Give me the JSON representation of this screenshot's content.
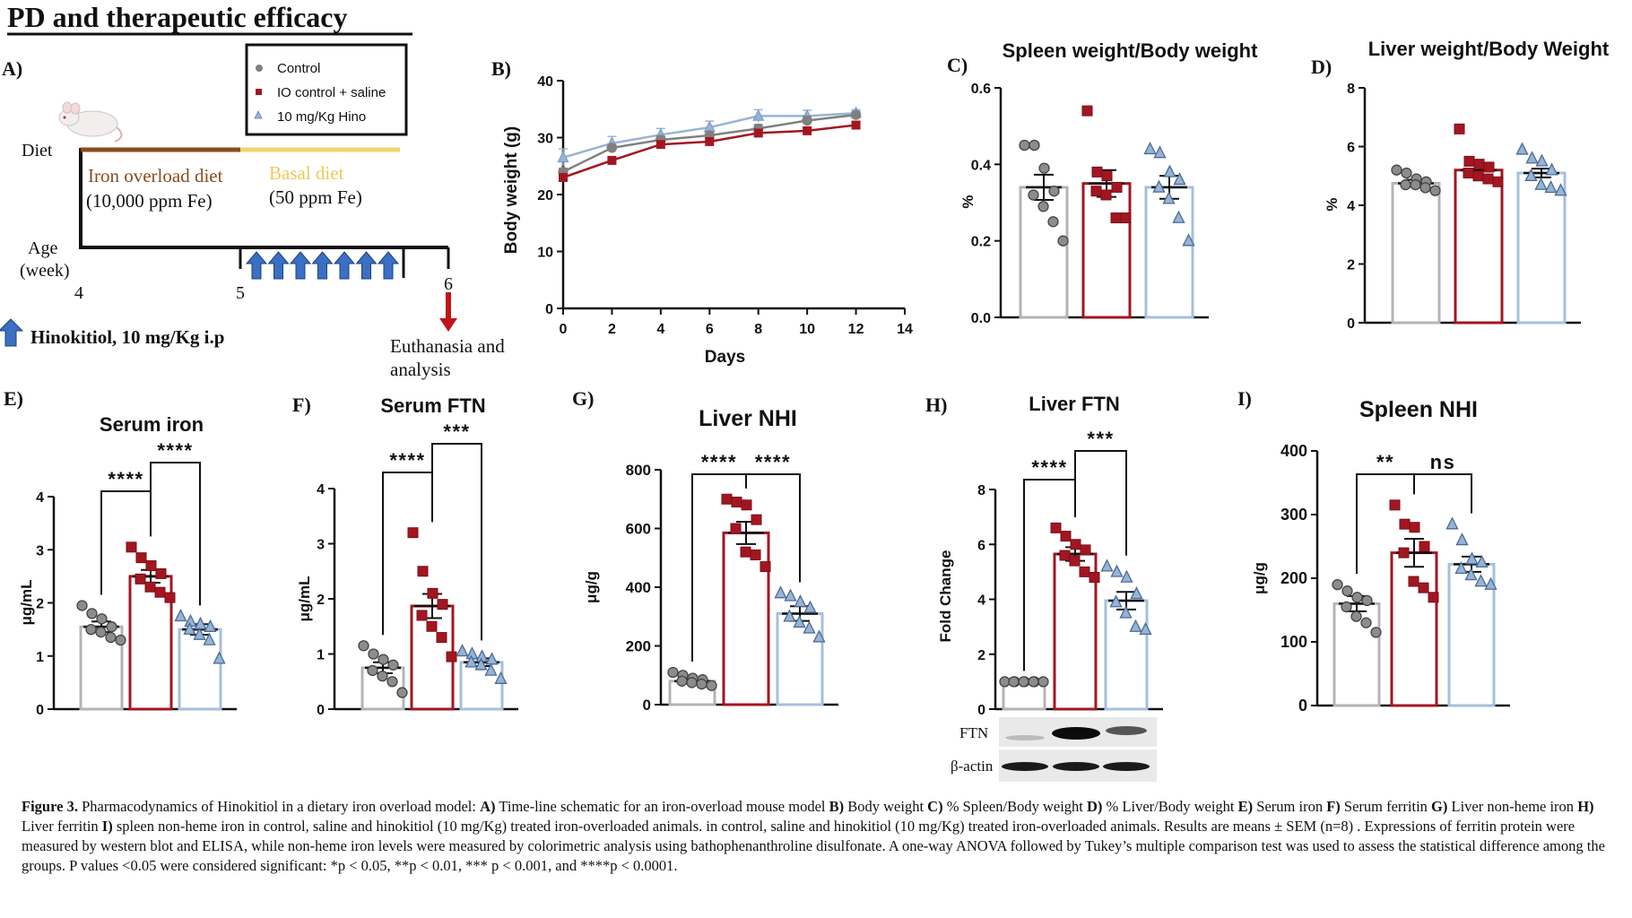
{
  "page_title": "PD and therapeutic efficacy",
  "panel_a": {
    "letter": "A)",
    "legend": [
      {
        "label": "Control",
        "color": "#808080",
        "marker": "circle"
      },
      {
        "label": "IO control + saline",
        "color": "#a31621",
        "marker": "square"
      },
      {
        "label": "10 mg/Kg Hino",
        "color": "#98b4d4",
        "marker": "triangle"
      }
    ],
    "diet_label": "Diet",
    "iron_diet_name": "Iron overload diet",
    "iron_diet_dose": "(10,000 ppm Fe)",
    "basal_diet_name": "Basal diet",
    "basal_diet_dose": "(50 ppm Fe)",
    "age_label": "Age",
    "week_label": "(week)",
    "ticks": [
      "4",
      "5",
      "6"
    ],
    "dosing_legend": "Hinokitiol, 10 mg/Kg i.p",
    "euthanasia_line1": "Euthanasia and",
    "euthanasia_line2": "analysis",
    "iron_diet_color": "#8b4a1e",
    "basal_diet_color": "#f5d36b",
    "arrow_color": "#3a6fc4",
    "euthanasia_arrow_color": "#c0141a",
    "injection_count": 7
  },
  "panel_b": {
    "letter": "B)"
  },
  "panel_c": {
    "letter": "C)"
  },
  "panel_d": {
    "letter": "D)"
  },
  "panel_e": {
    "letter": "E)"
  },
  "panel_f": {
    "letter": "F)"
  },
  "panel_g": {
    "letter": "G)"
  },
  "panel_h": {
    "letter": "H)",
    "blot_labels": [
      "FTN",
      "β-actin"
    ]
  },
  "panel_i": {
    "letter": "I)"
  },
  "chart_data": [
    {
      "panel": "B",
      "type": "line",
      "xlabel": "Days",
      "ylabel": "Body weight (g)",
      "xlim": [
        0,
        14
      ],
      "ylim": [
        0,
        40
      ],
      "xticks": [
        "0",
        "2",
        "4",
        "6",
        "8",
        "10",
        "12",
        "14"
      ],
      "yticks": [
        "0",
        "10",
        "20",
        "30",
        "40"
      ],
      "x": [
        0,
        2,
        4,
        6,
        8,
        10,
        12
      ],
      "series": [
        {
          "name": "Control",
          "color": "#808080",
          "marker": "circle",
          "values": [
            24,
            28.2,
            29.6,
            30.4,
            31.6,
            33,
            34
          ]
        },
        {
          "name": "IO control + saline",
          "color": "#a31621",
          "marker": "square",
          "values": [
            23,
            26,
            28.8,
            29.3,
            30.8,
            31.2,
            32.2
          ]
        },
        {
          "name": "10 mg/Kg Hino",
          "color": "#98b4d4",
          "marker": "triangle",
          "values": [
            26.5,
            29,
            30.5,
            31.8,
            33.8,
            33.8,
            34.3
          ]
        }
      ],
      "errors": [
        [
          0.6,
          0.5,
          0.6,
          0.6,
          0.7,
          0.7,
          0.6
        ],
        [
          0.5,
          0.5,
          0.6,
          0.5,
          0.5,
          0.5,
          0.5
        ],
        [
          1.5,
          1.2,
          1.1,
          1.1,
          1.1,
          1,
          0.6
        ]
      ]
    },
    {
      "panel": "C",
      "type": "bar",
      "title": "Spleen weight/Body weight",
      "ylabel": "%",
      "ylim": [
        0,
        0.6
      ],
      "yticks": [
        "0.0",
        "0.2",
        "0.4",
        "0.6"
      ],
      "groups": [
        {
          "name": "Control",
          "mean": 0.34,
          "sem": 0.033,
          "points": [
            0.45,
            0.45,
            0.39,
            0.33,
            0.32,
            0.29,
            0.25,
            0.2
          ]
        },
        {
          "name": "IO control + saline",
          "mean": 0.35,
          "sem": 0.035,
          "points": [
            0.54,
            0.38,
            0.37,
            0.34,
            0.33,
            0.32,
            0.26,
            0.26
          ]
        },
        {
          "name": "10 mg/Kg Hino",
          "mean": 0.34,
          "sem": 0.03,
          "points": [
            0.44,
            0.43,
            0.38,
            0.36,
            0.34,
            0.31,
            0.26,
            0.2
          ]
        }
      ]
    },
    {
      "panel": "D",
      "type": "bar",
      "title": "Liver weight/Body Weight",
      "ylabel": "%",
      "ylim": [
        0,
        8
      ],
      "yticks": [
        "0",
        "2",
        "4",
        "6",
        "8"
      ],
      "groups": [
        {
          "name": "Control",
          "mean": 4.75,
          "sem": 0.12,
          "points": [
            5.2,
            5.1,
            4.9,
            4.8,
            4.7,
            4.7,
            4.6,
            4.5
          ]
        },
        {
          "name": "IO control + saline",
          "mean": 5.2,
          "sem": 0.2,
          "points": [
            6.6,
            5.5,
            5.4,
            5.3,
            5.1,
            5.0,
            4.9,
            4.8
          ]
        },
        {
          "name": "10 mg/Kg Hino",
          "mean": 5.1,
          "sem": 0.15,
          "points": [
            5.9,
            5.6,
            5.5,
            5.2,
            5.0,
            4.7,
            4.6,
            4.5
          ]
        }
      ]
    },
    {
      "panel": "E",
      "type": "bar",
      "title": "Serum iron",
      "ylabel": "μg/mL",
      "ylim": [
        0,
        4
      ],
      "yticks": [
        "0",
        "1",
        "2",
        "3",
        "4"
      ],
      "groups": [
        {
          "name": "Control",
          "mean": 1.55,
          "sem": 0.1,
          "points": [
            1.95,
            1.8,
            1.7,
            1.55,
            1.5,
            1.45,
            1.35,
            1.3
          ]
        },
        {
          "name": "IO control + saline",
          "mean": 2.5,
          "sem": 0.12,
          "points": [
            3.05,
            2.85,
            2.7,
            2.55,
            2.45,
            2.3,
            2.2,
            2.1
          ]
        },
        {
          "name": "10 mg/Kg Hino",
          "mean": 1.5,
          "sem": 0.1,
          "points": [
            1.75,
            1.65,
            1.6,
            1.55,
            1.5,
            1.4,
            1.3,
            0.95
          ]
        }
      ],
      "comparisons": [
        {
          "from": 0,
          "to": 1,
          "label": "****"
        },
        {
          "from": 1,
          "to": 2,
          "label": "****"
        }
      ]
    },
    {
      "panel": "F",
      "type": "bar",
      "title": "Serum FTN",
      "ylabel": "μg/mL",
      "ylim": [
        0,
        4
      ],
      "yticks": [
        "0",
        "1",
        "2",
        "3",
        "4"
      ],
      "groups": [
        {
          "name": "Control",
          "mean": 0.75,
          "sem": 0.1,
          "points": [
            1.15,
            1.0,
            0.9,
            0.8,
            0.7,
            0.6,
            0.5,
            0.3
          ]
        },
        {
          "name": "IO control + saline",
          "mean": 1.87,
          "sem": 0.22,
          "points": [
            3.2,
            2.5,
            2.1,
            1.9,
            1.7,
            1.5,
            1.3,
            0.95
          ]
        },
        {
          "name": "10 mg/Kg Hino",
          "mean": 0.85,
          "sem": 0.07,
          "points": [
            1.05,
            1.0,
            0.95,
            0.9,
            0.85,
            0.8,
            0.7,
            0.55
          ]
        }
      ],
      "comparisons": [
        {
          "from": 0,
          "to": 1,
          "label": "****"
        },
        {
          "from": 1,
          "to": 2,
          "label": "***"
        }
      ]
    },
    {
      "panel": "G",
      "type": "bar",
      "title": "Liver NHI",
      "ylabel": "μg/g",
      "ylim": [
        0,
        800
      ],
      "yticks": [
        "0",
        "200",
        "400",
        "600",
        "800"
      ],
      "groups": [
        {
          "name": "Control",
          "mean": 80,
          "sem": 8,
          "points": [
            110,
            100,
            90,
            85,
            80,
            75,
            70,
            65
          ]
        },
        {
          "name": "IO control + saline",
          "mean": 585,
          "sem": 38,
          "points": [
            700,
            690,
            680,
            630,
            600,
            520,
            510,
            470
          ]
        },
        {
          "name": "10 mg/Kg Hino",
          "mean": 310,
          "sem": 25,
          "points": [
            380,
            370,
            350,
            330,
            300,
            280,
            260,
            230
          ]
        }
      ],
      "comparisons": [
        {
          "from": 0,
          "to": 1,
          "label": "****"
        },
        {
          "from": 1,
          "to": 2,
          "label": "****"
        }
      ]
    },
    {
      "panel": "H",
      "type": "bar",
      "title": "Liver FTN",
      "ylabel": "Fold Change",
      "ylim": [
        0,
        8
      ],
      "yticks": [
        "0",
        "2",
        "4",
        "6",
        "8"
      ],
      "groups": [
        {
          "name": "Control",
          "mean": 1.0,
          "sem": 0.02,
          "points": [
            1,
            1,
            1,
            1,
            1,
            1,
            1,
            1
          ]
        },
        {
          "name": "IO control + saline",
          "mean": 5.65,
          "sem": 0.25,
          "points": [
            6.6,
            6.3,
            6.0,
            5.8,
            5.6,
            5.4,
            5.0,
            4.8
          ]
        },
        {
          "name": "10 mg/Kg Hino",
          "mean": 3.95,
          "sem": 0.32,
          "points": [
            5.2,
            5.0,
            4.8,
            4.2,
            3.9,
            3.5,
            3.0,
            2.9
          ]
        }
      ],
      "comparisons": [
        {
          "from": 0,
          "to": 1,
          "label": "****"
        },
        {
          "from": 1,
          "to": 2,
          "label": "***"
        }
      ]
    },
    {
      "panel": "I",
      "type": "bar",
      "title": "Spleen NHI",
      "ylabel": "μg/g",
      "ylim": [
        0,
        400
      ],
      "yticks": [
        "0",
        "100",
        "200",
        "300",
        "400"
      ],
      "groups": [
        {
          "name": "Control",
          "mean": 160,
          "sem": 12,
          "points": [
            190,
            180,
            170,
            165,
            155,
            140,
            130,
            115
          ]
        },
        {
          "name": "IO control + saline",
          "mean": 240,
          "sem": 22,
          "points": [
            315,
            285,
            280,
            250,
            240,
            195,
            185,
            170
          ]
        },
        {
          "name": "10 mg/Kg Hino",
          "mean": 222,
          "sem": 12,
          "points": [
            285,
            260,
            230,
            225,
            215,
            205,
            195,
            190
          ]
        }
      ],
      "comparisons": [
        {
          "from": 0,
          "to": 1,
          "label": "**"
        },
        {
          "from": 1,
          "to": 2,
          "label": "ns"
        }
      ]
    }
  ],
  "caption": {
    "fig_label": "Figure 3.",
    "parts": [
      {
        "b": false,
        "t": " Pharmacodynamics of Hinokitiol in a dietary iron overload model: "
      },
      {
        "b": true,
        "t": "A)"
      },
      {
        "b": false,
        "t": " Time-line schematic for an iron-overload mouse model "
      },
      {
        "b": true,
        "t": "B)"
      },
      {
        "b": false,
        "t": " Body weight "
      },
      {
        "b": true,
        "t": "C)"
      },
      {
        "b": false,
        "t": " % Spleen/Body weight "
      },
      {
        "b": true,
        "t": "D)"
      },
      {
        "b": false,
        "t": " % Liver/Body weight "
      },
      {
        "b": true,
        "t": "E)"
      },
      {
        "b": false,
        "t": " Serum iron "
      },
      {
        "b": true,
        "t": "F)"
      },
      {
        "b": false,
        "t": " Serum ferritin "
      },
      {
        "b": true,
        "t": "G)"
      },
      {
        "b": false,
        "t": " Liver non-heme iron "
      },
      {
        "b": true,
        "t": "H)"
      },
      {
        "b": false,
        "t": " Liver ferritin "
      },
      {
        "b": true,
        "t": "I)"
      },
      {
        "b": false,
        "t": " spleen non-heme iron in control, saline and hinokitiol (10 mg/Kg) treated iron-overloaded animals. in control, saline and hinokitiol (10 mg/Kg) treated iron-overloaded animals. Results are means  ± SEM (n=8) . Expressions of ferritin protein were measured by western blot and ELISA, while non-heme iron levels were measured by colorimetric analysis using bathophenanthroline disulfonate. A one-way ANOVA followed by Tukey’s multiple comparison test was used to assess the statistical difference among the groups. P values <0.05 were  considered significant: *p < 0.05, **p < 0.01, *** p < 0.001, and ****p < 0.0001."
      }
    ]
  }
}
